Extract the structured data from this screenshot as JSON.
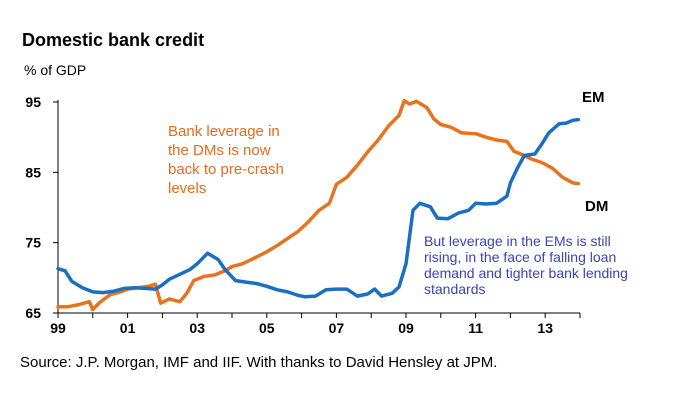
{
  "header": {
    "title": "Domestic bank credit",
    "unit": "% of GDP"
  },
  "footer": {
    "source": "Source: J.P. Morgan, IMF and IIF. With thanks to David Hensley at JPM."
  },
  "colors": {
    "dm": "#e8731f",
    "em": "#1a6fc0",
    "dm_text": "#e86a1e",
    "em_text": "#3b43b8"
  },
  "chart_data": {
    "type": "line",
    "title": "Domestic bank credit",
    "ylabel": "% of GDP",
    "xlim": [
      1999,
      2014
    ],
    "ylim": [
      65,
      95
    ],
    "y_ticks": [
      "65",
      "75",
      "85",
      "95"
    ],
    "y_tick_values": [
      65,
      75,
      85,
      95
    ],
    "x_ticks": [
      "99",
      "01",
      "03",
      "05",
      "07",
      "09",
      "11",
      "13"
    ],
    "x_tick_values": [
      1999,
      2001,
      2003,
      2005,
      2007,
      2009,
      2011,
      2013
    ],
    "series": [
      {
        "name": "DM",
        "color": "#e8731f",
        "points": [
          [
            1999.0,
            65.9
          ],
          [
            1999.3,
            65.9
          ],
          [
            1999.6,
            66.2
          ],
          [
            1999.9,
            66.6
          ],
          [
            2000.0,
            65.5
          ],
          [
            2000.2,
            66.5
          ],
          [
            2000.5,
            67.6
          ],
          [
            2000.8,
            68.0
          ],
          [
            2001.0,
            68.4
          ],
          [
            2001.3,
            68.6
          ],
          [
            2001.6,
            68.8
          ],
          [
            2001.8,
            69.1
          ],
          [
            2001.95,
            66.4
          ],
          [
            2002.2,
            67.0
          ],
          [
            2002.5,
            66.6
          ],
          [
            2002.7,
            67.8
          ],
          [
            2002.9,
            69.6
          ],
          [
            2003.2,
            70.2
          ],
          [
            2003.5,
            70.4
          ],
          [
            2003.8,
            71.0
          ],
          [
            2004.0,
            71.6
          ],
          [
            2004.3,
            72.0
          ],
          [
            2004.6,
            72.7
          ],
          [
            2005.0,
            73.7
          ],
          [
            2005.3,
            74.6
          ],
          [
            2005.6,
            75.6
          ],
          [
            2005.9,
            76.6
          ],
          [
            2006.2,
            78.0
          ],
          [
            2006.5,
            79.6
          ],
          [
            2006.8,
            80.6
          ],
          [
            2007.0,
            83.3
          ],
          [
            2007.3,
            84.3
          ],
          [
            2007.6,
            86.0
          ],
          [
            2007.9,
            87.9
          ],
          [
            2008.2,
            89.6
          ],
          [
            2008.5,
            91.6
          ],
          [
            2008.8,
            93.1
          ],
          [
            2008.95,
            95.2
          ],
          [
            2009.1,
            94.7
          ],
          [
            2009.3,
            95.1
          ],
          [
            2009.6,
            94.2
          ],
          [
            2009.8,
            92.6
          ],
          [
            2010.0,
            91.8
          ],
          [
            2010.3,
            91.4
          ],
          [
            2010.6,
            90.6
          ],
          [
            2011.0,
            90.5
          ],
          [
            2011.3,
            90.0
          ],
          [
            2011.6,
            89.6
          ],
          [
            2011.9,
            89.4
          ],
          [
            2012.1,
            88.0
          ],
          [
            2012.3,
            87.6
          ],
          [
            2012.6,
            86.9
          ],
          [
            2012.9,
            86.4
          ],
          [
            2013.2,
            85.6
          ],
          [
            2013.5,
            84.3
          ],
          [
            2013.8,
            83.5
          ],
          [
            2013.95,
            83.4
          ]
        ]
      },
      {
        "name": "EM",
        "color": "#1a6fc0",
        "points": [
          [
            1999.0,
            71.3
          ],
          [
            1999.2,
            71.0
          ],
          [
            1999.4,
            69.5
          ],
          [
            1999.7,
            68.6
          ],
          [
            2000.0,
            68.0
          ],
          [
            2000.3,
            67.9
          ],
          [
            2000.6,
            68.1
          ],
          [
            2000.9,
            68.5
          ],
          [
            2001.2,
            68.6
          ],
          [
            2001.5,
            68.5
          ],
          [
            2001.8,
            68.4
          ],
          [
            2002.0,
            69.0
          ],
          [
            2002.2,
            69.8
          ],
          [
            2002.5,
            70.5
          ],
          [
            2002.8,
            71.2
          ],
          [
            2003.0,
            72.0
          ],
          [
            2003.3,
            73.5
          ],
          [
            2003.6,
            72.6
          ],
          [
            2003.8,
            71.2
          ],
          [
            2004.1,
            69.6
          ],
          [
            2004.4,
            69.4
          ],
          [
            2004.7,
            69.2
          ],
          [
            2005.0,
            68.8
          ],
          [
            2005.3,
            68.3
          ],
          [
            2005.6,
            68.0
          ],
          [
            2005.9,
            67.5
          ],
          [
            2006.1,
            67.3
          ],
          [
            2006.4,
            67.4
          ],
          [
            2006.7,
            68.3
          ],
          [
            2007.0,
            68.4
          ],
          [
            2007.3,
            68.4
          ],
          [
            2007.6,
            67.4
          ],
          [
            2007.9,
            67.7
          ],
          [
            2008.1,
            68.4
          ],
          [
            2008.3,
            67.4
          ],
          [
            2008.6,
            67.8
          ],
          [
            2008.8,
            68.7
          ],
          [
            2009.0,
            72.0
          ],
          [
            2009.2,
            79.6
          ],
          [
            2009.4,
            80.6
          ],
          [
            2009.7,
            80.1
          ],
          [
            2009.9,
            78.5
          ],
          [
            2010.2,
            78.4
          ],
          [
            2010.5,
            79.2
          ],
          [
            2010.8,
            79.6
          ],
          [
            2011.0,
            80.6
          ],
          [
            2011.3,
            80.5
          ],
          [
            2011.6,
            80.6
          ],
          [
            2011.9,
            81.6
          ],
          [
            2012.0,
            83.5
          ],
          [
            2012.2,
            85.6
          ],
          [
            2012.4,
            87.4
          ],
          [
            2012.7,
            87.6
          ],
          [
            2012.9,
            89.0
          ],
          [
            2013.1,
            90.6
          ],
          [
            2013.4,
            91.9
          ],
          [
            2013.6,
            92.0
          ],
          [
            2013.8,
            92.4
          ],
          [
            2013.95,
            92.5
          ]
        ]
      }
    ],
    "series_labels": [
      "EM",
      "DM"
    ],
    "annotations": {
      "dm": [
        "Bank leverage in",
        "the DMs is now",
        "back to pre-crash",
        "levels"
      ],
      "em": [
        "But leverage in the EMs is still",
        "rising, in the face of falling loan",
        "demand and tighter bank lending",
        "standards"
      ]
    }
  }
}
